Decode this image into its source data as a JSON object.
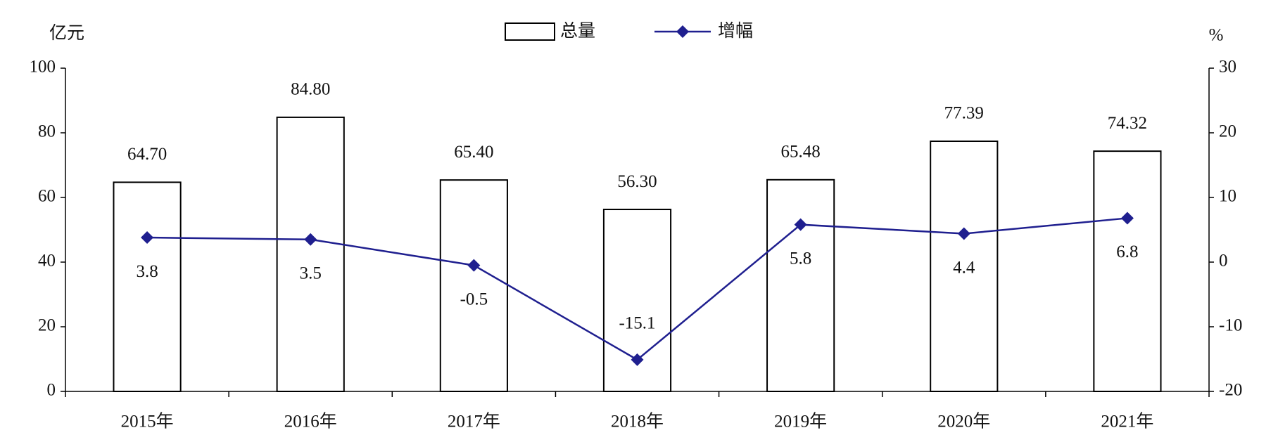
{
  "chart_data": {
    "type": "bar-line",
    "y_label": "亿元",
    "y2_label": "%",
    "categories": [
      "2015年",
      "2016年",
      "2017年",
      "2018年",
      "2019年",
      "2020年",
      "2021年"
    ],
    "series": [
      {
        "name": "总量",
        "type": "bar",
        "color": "#000000",
        "values": [
          64.7,
          84.8,
          65.4,
          56.3,
          65.48,
          77.39,
          74.32
        ],
        "value_labels": [
          "64.70",
          "84.80",
          "65.40",
          "56.30",
          "65.48",
          "77.39",
          "74.32"
        ]
      },
      {
        "name": "增幅",
        "type": "line",
        "axis": "y2",
        "color": "#1f1f8f",
        "values": [
          3.8,
          3.5,
          -0.5,
          -15.1,
          5.8,
          4.4,
          6.8
        ]
      }
    ],
    "ylim": [
      0,
      100
    ],
    "yticks": [
      0,
      20,
      40,
      60,
      80,
      100
    ],
    "y2lim": [
      -20,
      30
    ],
    "y2ticks": [
      -20,
      -10,
      0,
      10,
      20,
      30
    ],
    "grid": false,
    "legend": "top"
  }
}
